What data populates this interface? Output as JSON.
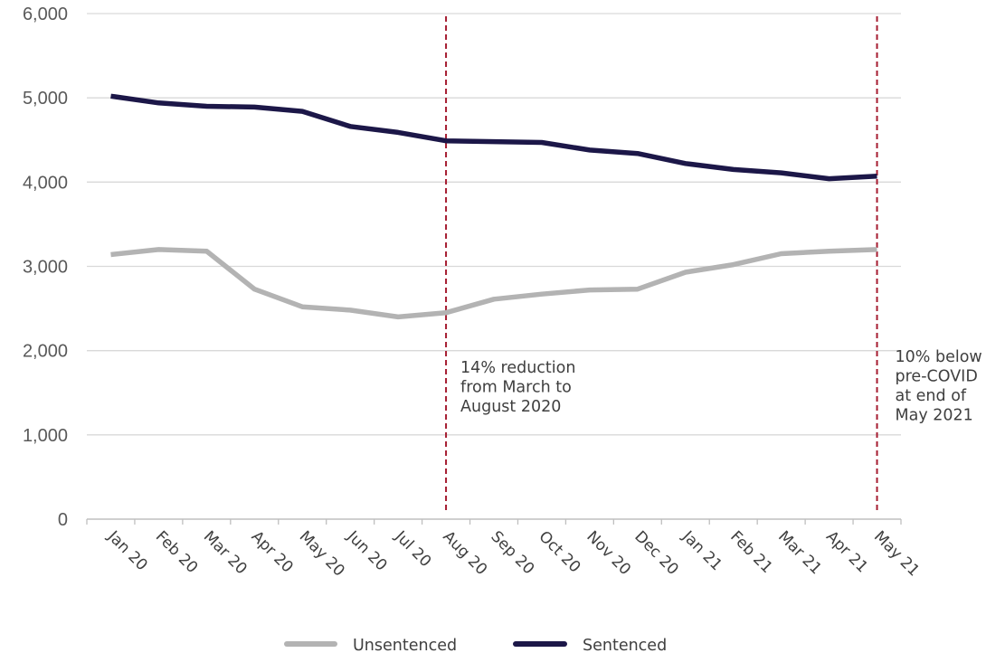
{
  "chart_data": {
    "type": "line",
    "categories": [
      "Jan 20",
      "Feb 20",
      "Mar 20",
      "Apr 20",
      "May 20",
      "Jun 20",
      "Jul 20",
      "Aug 20",
      "Sep 20",
      "Oct 20",
      "Nov 20",
      "Dec 20",
      "Jan 21",
      "Feb 21",
      "Mar 21",
      "Apr 21",
      "May 21"
    ],
    "series": [
      {
        "name": "Unsentenced",
        "color": "#b3b3b3",
        "values": [
          3140,
          3200,
          3180,
          2730,
          2520,
          2480,
          2400,
          2450,
          2610,
          2670,
          2720,
          2730,
          2930,
          3020,
          3150,
          3180,
          3200
        ]
      },
      {
        "name": "Sentenced",
        "color": "#1c1748",
        "values": [
          5020,
          4940,
          4900,
          4890,
          4840,
          4660,
          4590,
          4490,
          4480,
          4470,
          4380,
          4340,
          4220,
          4150,
          4110,
          4040,
          4070
        ]
      }
    ],
    "ylim": [
      0,
      6000
    ],
    "yticks": [
      "0",
      "1,000",
      "2,000",
      "3,000",
      "4,000",
      "5,000",
      "6,000"
    ],
    "ytick_values": [
      0,
      1000,
      2000,
      3000,
      4000,
      5000,
      6000
    ],
    "grid": true,
    "legend_position": "bottom-center",
    "annotations": [
      {
        "at_category": "Aug 20",
        "color": "#a51c30",
        "lines": [
          "14% reduction",
          "from March to",
          "August 2020"
        ]
      },
      {
        "at_category": "May 21",
        "color": "#a51c30",
        "lines": [
          "10% below",
          "pre-COVID",
          "at end of",
          "May 2021"
        ]
      }
    ]
  }
}
